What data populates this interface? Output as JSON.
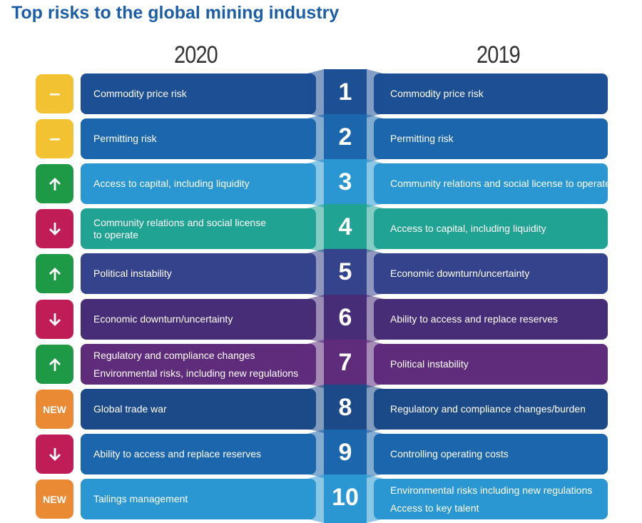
{
  "title": "Top risks to the global mining industry",
  "years": {
    "left": "2020",
    "right": "2019"
  },
  "rows": [
    {
      "rank": "1",
      "trend": "neutral",
      "badge_label": "",
      "left": [
        "Commodity price risk"
      ],
      "right": [
        "Commodity price risk"
      ],
      "color": "#1c4f93"
    },
    {
      "rank": "2",
      "trend": "neutral",
      "badge_label": "",
      "left": [
        "Permitting risk"
      ],
      "right": [
        "Permitting risk"
      ],
      "color": "#1b66ad"
    },
    {
      "rank": "3",
      "trend": "up",
      "badge_label": "",
      "left": [
        "Access to capital, including liquidity"
      ],
      "right": [
        "Community relations and social license to operate"
      ],
      "color": "#2a97d2"
    },
    {
      "rank": "4",
      "trend": "down",
      "badge_label": "",
      "left": [
        "Community relations and social license to operate"
      ],
      "right": [
        "Access to capital, including liquidity"
      ],
      "color": "#21a394"
    },
    {
      "rank": "5",
      "trend": "up",
      "badge_label": "",
      "left": [
        "Political instability"
      ],
      "right": [
        "Economic downturn/uncertainty"
      ],
      "color": "#35438d"
    },
    {
      "rank": "6",
      "trend": "down",
      "badge_label": "",
      "left": [
        "Economic downturn/uncertainty"
      ],
      "right": [
        "Ability to access and replace reserves"
      ],
      "color": "#472d77"
    },
    {
      "rank": "7",
      "trend": "up",
      "badge_label": "",
      "left": [
        "Regulatory and compliance changes",
        "Environmental risks, including new regulations"
      ],
      "right": [
        "Political instability"
      ],
      "color": "#5f2c7c"
    },
    {
      "rank": "8",
      "trend": "new",
      "badge_label": "NEW",
      "left": [
        "Global trade war"
      ],
      "right": [
        "Regulatory and compliance changes/burden"
      ],
      "color": "#1c4a88"
    },
    {
      "rank": "9",
      "trend": "down",
      "badge_label": "",
      "left": [
        "Ability to access and replace reserves"
      ],
      "right": [
        "Controlling operating costs"
      ],
      "color": "#1b66ad"
    },
    {
      "rank": "10",
      "trend": "new",
      "badge_label": "NEW",
      "left": [
        "Tailings management"
      ],
      "right": [
        "Environmental risks including new regulations",
        "Access to key talent"
      ],
      "color": "#2a97d2"
    }
  ],
  "trend_colors": {
    "neutral": "#f2c233",
    "up": "#1e9a46",
    "down": "#c01c55",
    "new": "#eb8a34"
  },
  "icons": {
    "neutral": "dash-icon",
    "up": "arrow-up-icon",
    "down": "arrow-down-icon",
    "new": "new-label"
  }
}
